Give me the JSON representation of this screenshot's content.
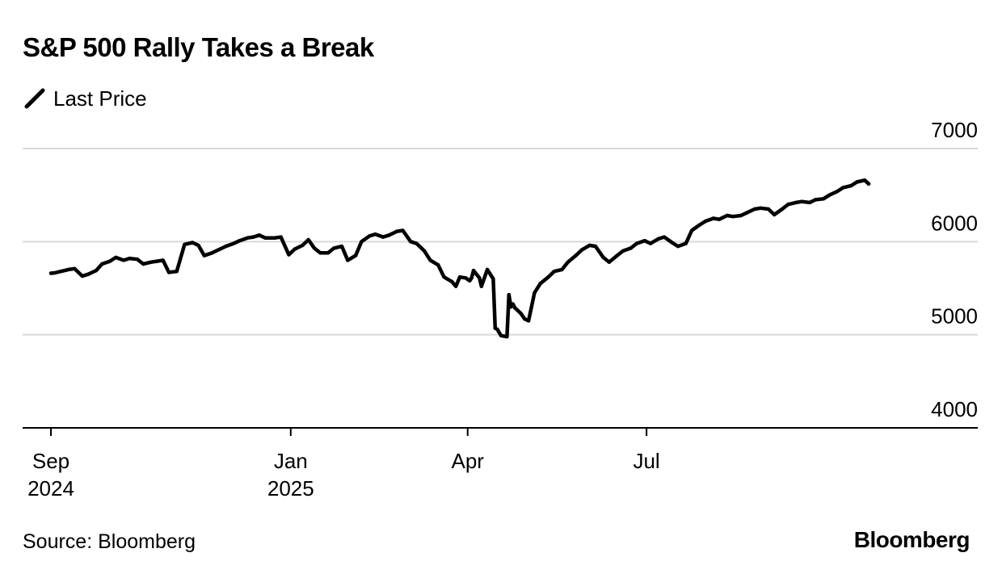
{
  "title": "S&P 500 Rally Takes a Break",
  "legend": {
    "label": "Last Price",
    "icon": "line-swatch-icon",
    "color": "#000000"
  },
  "source": "Source: Bloomberg",
  "brand": "Bloomberg",
  "chart_data": {
    "type": "line",
    "title": "S&P 500 Rally Takes a Break",
    "xlabel": "",
    "ylabel": "",
    "ylim": [
      4000,
      7000
    ],
    "y_ticks": [
      4000,
      5000,
      6000,
      7000
    ],
    "y_tick_labels": [
      "4000",
      "5000",
      "6000",
      "7000"
    ],
    "x_ticks": [
      {
        "date": "2024-09-01",
        "label": "Sep",
        "sublabel": "2024"
      },
      {
        "date": "2025-01-01",
        "label": "Jan",
        "sublabel": "2025"
      },
      {
        "date": "2025-04-01",
        "label": "Apr",
        "sublabel": ""
      },
      {
        "date": "2025-07-01",
        "label": "Jul",
        "sublabel": ""
      }
    ],
    "grid": true,
    "legend_position": "top-left",
    "series": [
      {
        "name": "Last Price",
        "color": "#000000",
        "points": [
          [
            "2024-09-01",
            5660
          ],
          [
            "2024-09-03",
            5665
          ],
          [
            "2024-09-06",
            5680
          ],
          [
            "2024-09-10",
            5700
          ],
          [
            "2024-09-13",
            5710
          ],
          [
            "2024-09-17",
            5630
          ],
          [
            "2024-09-20",
            5650
          ],
          [
            "2024-09-24",
            5690
          ],
          [
            "2024-09-27",
            5760
          ],
          [
            "2024-10-01",
            5790
          ],
          [
            "2024-10-04",
            5830
          ],
          [
            "2024-10-08",
            5800
          ],
          [
            "2024-10-11",
            5820
          ],
          [
            "2024-10-15",
            5810
          ],
          [
            "2024-10-18",
            5760
          ],
          [
            "2024-10-22",
            5780
          ],
          [
            "2024-10-25",
            5790
          ],
          [
            "2024-10-28",
            5800
          ],
          [
            "2024-10-31",
            5670
          ],
          [
            "2024-11-04",
            5680
          ],
          [
            "2024-11-08",
            5970
          ],
          [
            "2024-11-12",
            5990
          ],
          [
            "2024-11-15",
            5960
          ],
          [
            "2024-11-18",
            5850
          ],
          [
            "2024-11-22",
            5880
          ],
          [
            "2024-11-26",
            5920
          ],
          [
            "2024-11-29",
            5950
          ],
          [
            "2024-12-03",
            5980
          ],
          [
            "2024-12-06",
            6010
          ],
          [
            "2024-12-10",
            6040
          ],
          [
            "2024-12-13",
            6050
          ],
          [
            "2024-12-16",
            6070
          ],
          [
            "2024-12-19",
            6040
          ],
          [
            "2024-12-24",
            6040
          ],
          [
            "2024-12-27",
            6050
          ],
          [
            "2024-12-31",
            5860
          ],
          [
            "2025-01-03",
            5920
          ],
          [
            "2025-01-07",
            5960
          ],
          [
            "2025-01-10",
            6020
          ],
          [
            "2025-01-13",
            5930
          ],
          [
            "2025-01-16",
            5880
          ],
          [
            "2025-01-20",
            5880
          ],
          [
            "2025-01-23",
            5930
          ],
          [
            "2025-01-27",
            5950
          ],
          [
            "2025-01-30",
            5800
          ],
          [
            "2025-02-03",
            5850
          ],
          [
            "2025-02-06",
            6000
          ],
          [
            "2025-02-10",
            6060
          ],
          [
            "2025-02-13",
            6080
          ],
          [
            "2025-02-17",
            6050
          ],
          [
            "2025-02-20",
            6070
          ],
          [
            "2025-02-24",
            6110
          ],
          [
            "2025-02-27",
            6120
          ],
          [
            "2025-03-03",
            6000
          ],
          [
            "2025-03-06",
            5980
          ],
          [
            "2025-03-10",
            5900
          ],
          [
            "2025-03-13",
            5800
          ],
          [
            "2025-03-17",
            5750
          ],
          [
            "2025-03-20",
            5620
          ],
          [
            "2025-03-24",
            5570
          ],
          [
            "2025-03-26",
            5520
          ],
          [
            "2025-03-28",
            5620
          ],
          [
            "2025-03-31",
            5610
          ],
          [
            "2025-04-02",
            5580
          ],
          [
            "2025-04-03",
            5610
          ],
          [
            "2025-04-04",
            5690
          ],
          [
            "2025-04-07",
            5610
          ],
          [
            "2025-04-08",
            5520
          ],
          [
            "2025-04-09",
            5580
          ],
          [
            "2025-04-10",
            5640
          ],
          [
            "2025-04-11",
            5700
          ],
          [
            "2025-04-14",
            5600
          ],
          [
            "2025-04-15",
            5070
          ],
          [
            "2025-04-16",
            5060
          ],
          [
            "2025-04-18",
            4990
          ],
          [
            "2025-04-21",
            4980
          ],
          [
            "2025-04-22",
            5430
          ],
          [
            "2025-04-23",
            5300
          ],
          [
            "2025-04-24",
            5330
          ],
          [
            "2025-04-25",
            5290
          ],
          [
            "2025-04-28",
            5230
          ],
          [
            "2025-04-30",
            5170
          ],
          [
            "2025-05-02",
            5150
          ],
          [
            "2025-05-05",
            5450
          ],
          [
            "2025-05-08",
            5550
          ],
          [
            "2025-05-12",
            5620
          ],
          [
            "2025-05-15",
            5680
          ],
          [
            "2025-05-19",
            5700
          ],
          [
            "2025-05-22",
            5780
          ],
          [
            "2025-05-26",
            5850
          ],
          [
            "2025-05-29",
            5910
          ],
          [
            "2025-06-02",
            5960
          ],
          [
            "2025-06-05",
            5950
          ],
          [
            "2025-06-09",
            5830
          ],
          [
            "2025-06-12",
            5780
          ],
          [
            "2025-06-16",
            5850
          ],
          [
            "2025-06-19",
            5900
          ],
          [
            "2025-06-23",
            5930
          ],
          [
            "2025-06-26",
            5980
          ],
          [
            "2025-06-30",
            6010
          ],
          [
            "2025-07-03",
            5980
          ],
          [
            "2025-07-07",
            6030
          ],
          [
            "2025-07-10",
            6050
          ],
          [
            "2025-07-14",
            5990
          ],
          [
            "2025-07-17",
            5950
          ],
          [
            "2025-07-21",
            5980
          ],
          [
            "2025-07-24",
            6120
          ],
          [
            "2025-07-28",
            6180
          ],
          [
            "2025-07-31",
            6220
          ],
          [
            "2025-08-04",
            6250
          ],
          [
            "2025-08-07",
            6240
          ],
          [
            "2025-08-11",
            6280
          ],
          [
            "2025-08-14",
            6270
          ],
          [
            "2025-08-18",
            6280
          ],
          [
            "2025-08-21",
            6310
          ],
          [
            "2025-08-25",
            6350
          ],
          [
            "2025-08-28",
            6360
          ],
          [
            "2025-09-01",
            6350
          ],
          [
            "2025-09-04",
            6290
          ],
          [
            "2025-09-08",
            6350
          ],
          [
            "2025-09-11",
            6400
          ],
          [
            "2025-09-15",
            6420
          ],
          [
            "2025-09-18",
            6430
          ],
          [
            "2025-09-22",
            6420
          ],
          [
            "2025-09-25",
            6450
          ],
          [
            "2025-09-29",
            6460
          ],
          [
            "2025-10-02",
            6500
          ],
          [
            "2025-10-06",
            6540
          ],
          [
            "2025-10-09",
            6580
          ],
          [
            "2025-10-13",
            6600
          ],
          [
            "2025-10-16",
            6640
          ],
          [
            "2025-10-20",
            6660
          ],
          [
            "2025-10-22",
            6620
          ]
        ]
      }
    ]
  }
}
